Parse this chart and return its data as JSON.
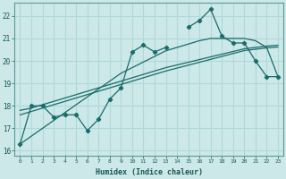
{
  "xlabel": "Humidex (Indice chaleur)",
  "ylabel": "",
  "background_color": "#cce8e8",
  "grid_color": "#b0d8d8",
  "line_color": "#1a6b6b",
  "xlim": [
    -0.5,
    23.5
  ],
  "ylim": [
    15.8,
    22.6
  ],
  "yticks": [
    16,
    17,
    18,
    19,
    20,
    21,
    22
  ],
  "xticks": [
    0,
    1,
    2,
    3,
    4,
    5,
    6,
    7,
    8,
    9,
    10,
    11,
    12,
    13,
    14,
    15,
    16,
    17,
    18,
    19,
    20,
    21,
    22,
    23
  ],
  "x_data": [
    0,
    1,
    2,
    3,
    4,
    5,
    6,
    7,
    8,
    9,
    10,
    11,
    12,
    13,
    14,
    15,
    16,
    17,
    18,
    19,
    20,
    21,
    22,
    23
  ],
  "y_main": [
    16.3,
    18.0,
    18.0,
    17.5,
    17.6,
    17.6,
    16.9,
    17.4,
    18.3,
    18.8,
    20.4,
    20.7,
    20.4,
    20.6,
    null,
    21.5,
    21.8,
    22.3,
    21.1,
    20.8,
    20.8,
    20.0,
    19.3,
    19.3
  ],
  "y_trend1": [
    17.8,
    17.9,
    18.05,
    18.2,
    18.35,
    18.5,
    18.65,
    18.8,
    18.95,
    19.1,
    19.25,
    19.4,
    19.55,
    19.7,
    19.82,
    19.94,
    20.06,
    20.18,
    20.3,
    20.42,
    20.54,
    20.6,
    20.66,
    20.7
  ],
  "y_trend2": [
    17.6,
    17.75,
    17.9,
    18.05,
    18.2,
    18.35,
    18.5,
    18.65,
    18.8,
    18.95,
    19.1,
    19.25,
    19.4,
    19.55,
    19.68,
    19.81,
    19.94,
    20.07,
    20.2,
    20.33,
    20.46,
    20.52,
    20.58,
    20.62
  ],
  "y_trend3": [
    16.3,
    16.65,
    17.0,
    17.35,
    17.7,
    18.05,
    18.4,
    18.75,
    19.1,
    19.45,
    19.7,
    19.95,
    20.2,
    20.45,
    20.6,
    20.75,
    20.9,
    21.0,
    21.0,
    21.0,
    21.0,
    20.9,
    20.6,
    19.3
  ]
}
